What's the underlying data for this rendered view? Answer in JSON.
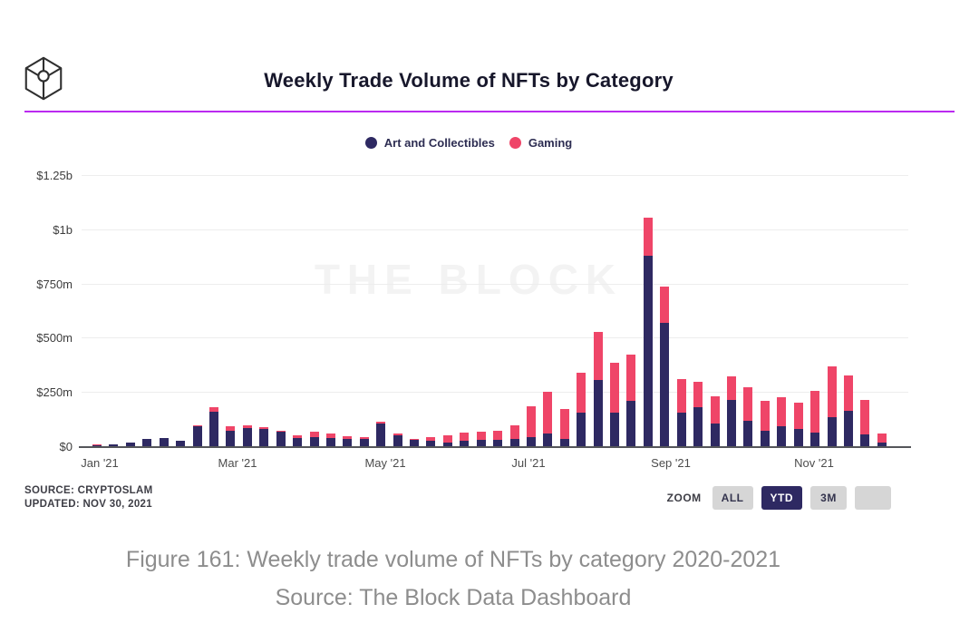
{
  "header": {
    "title": "Weekly Trade Volume of NFTs by Category"
  },
  "legend": [
    {
      "label": "Art and Collectibles",
      "color": "#2e2962"
    },
    {
      "label": "Gaming",
      "color": "#ef4568"
    }
  ],
  "watermark": "THE BLOCK",
  "source": {
    "line1": "SOURCE: CRYPTOSLAM",
    "line2": "UPDATED: NOV 30, 2021"
  },
  "zoom_controls": {
    "label": "ZOOM",
    "buttons": [
      {
        "label": "ALL",
        "active": false
      },
      {
        "label": "YTD",
        "active": true
      },
      {
        "label": "3M",
        "active": false
      },
      {
        "label": "",
        "active": false
      }
    ]
  },
  "caption": {
    "line1": "Figure 161: Weekly trade volume of NFTs by category 2020-2021",
    "line2": "Source: The Block Data Dashboard"
  },
  "chart_data": {
    "type": "bar",
    "stacked": true,
    "title": "Weekly Trade Volume of NFTs by Category",
    "unit": "USD millions per week",
    "x_description": "48 weekly bars, Jan 2021 through Nov 2021",
    "ylim": [
      0,
      1250
    ],
    "ytick_values": [
      0,
      250,
      500,
      750,
      1000,
      1250
    ],
    "ytick_labels": [
      "$0",
      "$250m",
      "$500m",
      "$750m",
      "$1b",
      "$1.25b"
    ],
    "xtick_labels": [
      "Jan '21",
      "Mar '21",
      "May '21",
      "Jul '21",
      "Sep '21",
      "Nov '21"
    ],
    "legend_position": "top-center",
    "grid": true,
    "series": [
      {
        "name": "Art and Collectibles",
        "color": "#2e2962",
        "values": [
          1,
          9,
          16,
          33,
          39,
          27,
          92,
          160,
          70,
          85,
          79,
          67,
          36,
          43,
          36,
          33,
          35,
          105,
          50,
          30,
          27,
          18,
          24,
          28,
          28,
          32,
          42,
          60,
          33,
          155,
          305,
          155,
          210,
          880,
          570,
          154,
          178,
          106,
          215,
          118,
          72,
          91,
          81,
          61,
          133,
          165,
          56,
          15
        ]
      },
      {
        "name": "Gaming",
        "color": "#ef4568",
        "values": [
          4,
          0,
          0,
          0,
          0,
          0,
          4,
          21,
          23,
          10,
          7,
          4,
          14,
          24,
          21,
          13,
          5,
          10,
          10,
          3,
          13,
          31,
          39,
          37,
          44,
          65,
          143,
          190,
          138,
          185,
          220,
          230,
          211,
          172,
          166,
          157,
          121,
          122,
          109,
          152,
          138,
          133,
          121,
          196,
          235,
          160,
          159,
          42
        ]
      }
    ]
  }
}
